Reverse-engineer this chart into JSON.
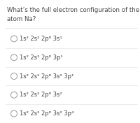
{
  "title": "What’s the full electron configuration of the\natom Na?",
  "options": [
    "1s² 2s² 2p⁶ 3s¹",
    "1s² 2s² 2p⁶ 3p¹",
    "1s² 2s² 2p⁶ 3s² 3p¹",
    "1s² 2s² 2p⁶ 3s²",
    "1s² 2s² 2p⁶ 3s² 3p⁴"
  ],
  "bg_color": "#ffffff",
  "title_fontsize": 6.2,
  "option_fontsize": 6.0,
  "text_color": "#444444",
  "circle_color": "#999999",
  "divider_color": "#dddddd"
}
